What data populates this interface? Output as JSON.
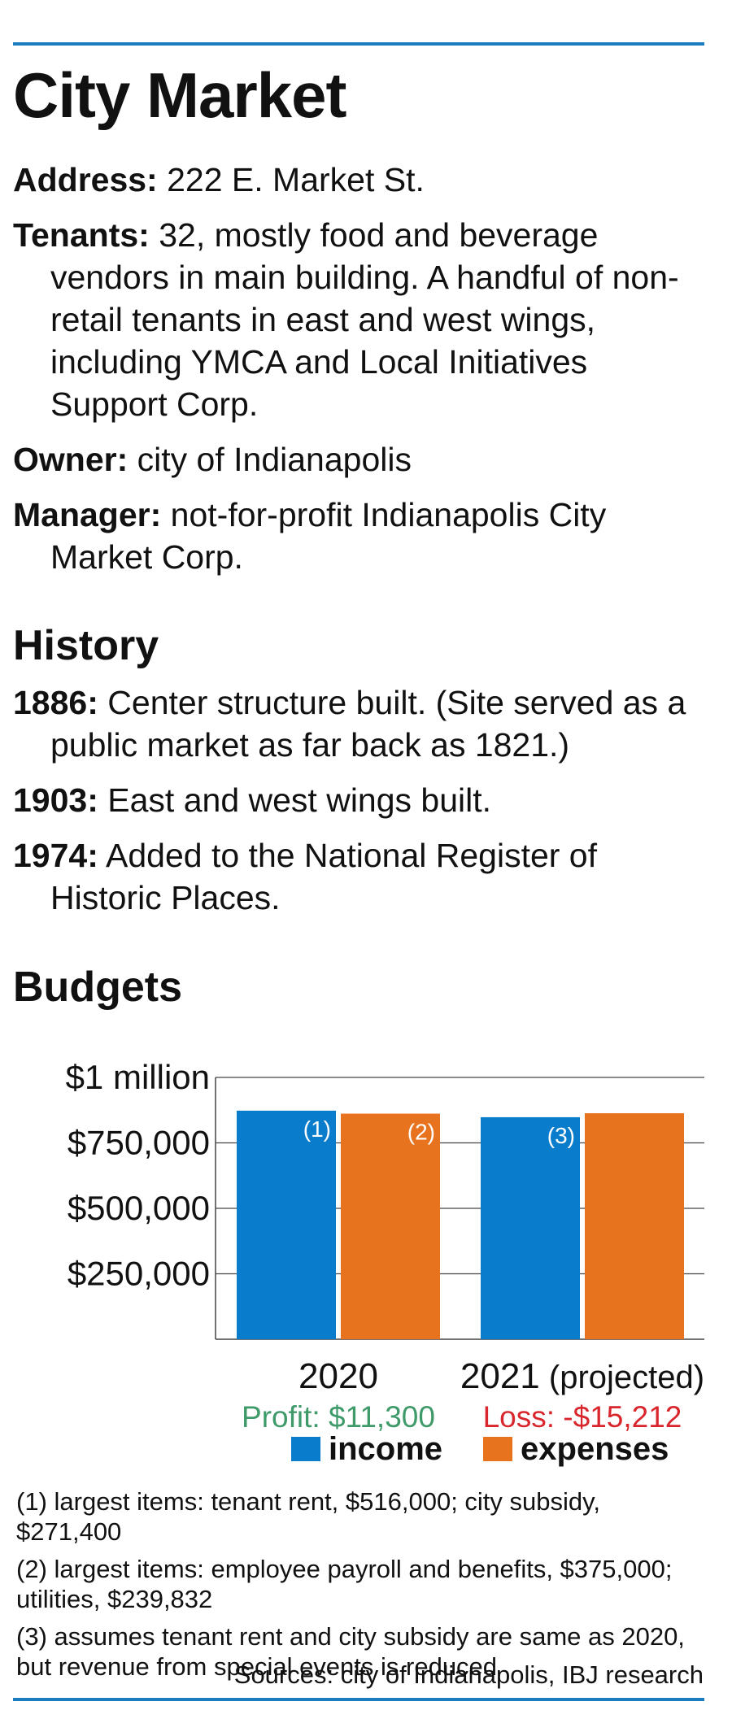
{
  "title": "City Market",
  "facts": [
    {
      "key": "Address:",
      "value": "222 E. Market St."
    },
    {
      "key": "Tenants:",
      "value": "32, mostly food and beverage vendors in main building. A handful of non-retail tenants in east and west wings, including YMCA and Local Initiatives Support Corp."
    },
    {
      "key": "Owner:",
      "value": "city of Indianapolis"
    },
    {
      "key": "Manager:",
      "value": "not-for-profit Indianapolis City Market Corp."
    }
  ],
  "history_heading": "History",
  "history": [
    {
      "key": "1886:",
      "value": "Center structure built. (Site served as a public market as far back as 1821.)"
    },
    {
      "key": "1903:",
      "value": "East and west wings built."
    },
    {
      "key": "1974:",
      "value": "Added to the National Register of Historic Places."
    }
  ],
  "budgets_heading": "Budgets",
  "chart_data": {
    "type": "bar",
    "categories": [
      "2020",
      "2021"
    ],
    "category_suffixes": [
      "",
      "(projected)"
    ],
    "series": [
      {
        "name": "income",
        "values": [
          873000,
          848000
        ],
        "color": "#0a7ccc",
        "notes": [
          "(1)",
          "(3)"
        ]
      },
      {
        "name": "expenses",
        "values": [
          861700,
          863212
        ],
        "color": "#e8731f",
        "notes": [
          "(2)",
          ""
        ]
      }
    ],
    "ylim": [
      0,
      1000000
    ],
    "yticks": [
      250000,
      500000,
      750000,
      1000000
    ],
    "ytick_labels": [
      "$250,000",
      "$500,000",
      "$750,000",
      "$1 million"
    ],
    "grid": true,
    "legend": "bottom",
    "annotations": [
      {
        "category": "2020",
        "text": "Profit: $11,300",
        "color": "#3f9a6a"
      },
      {
        "category": "2021",
        "text": "Loss: -$15,212",
        "color": "#d9262c"
      }
    ]
  },
  "notes": [
    "(1) largest items: tenant rent, $516,000; city subsidy, $271,400",
    "(2) largest items: employee payroll and benefits, $375,000; utilities, $239,832",
    "(3) assumes tenant rent and city subsidy are same as 2020, but revenue from special events is reduced"
  ],
  "source": "Sources: city of Indianapolis, IBJ research"
}
